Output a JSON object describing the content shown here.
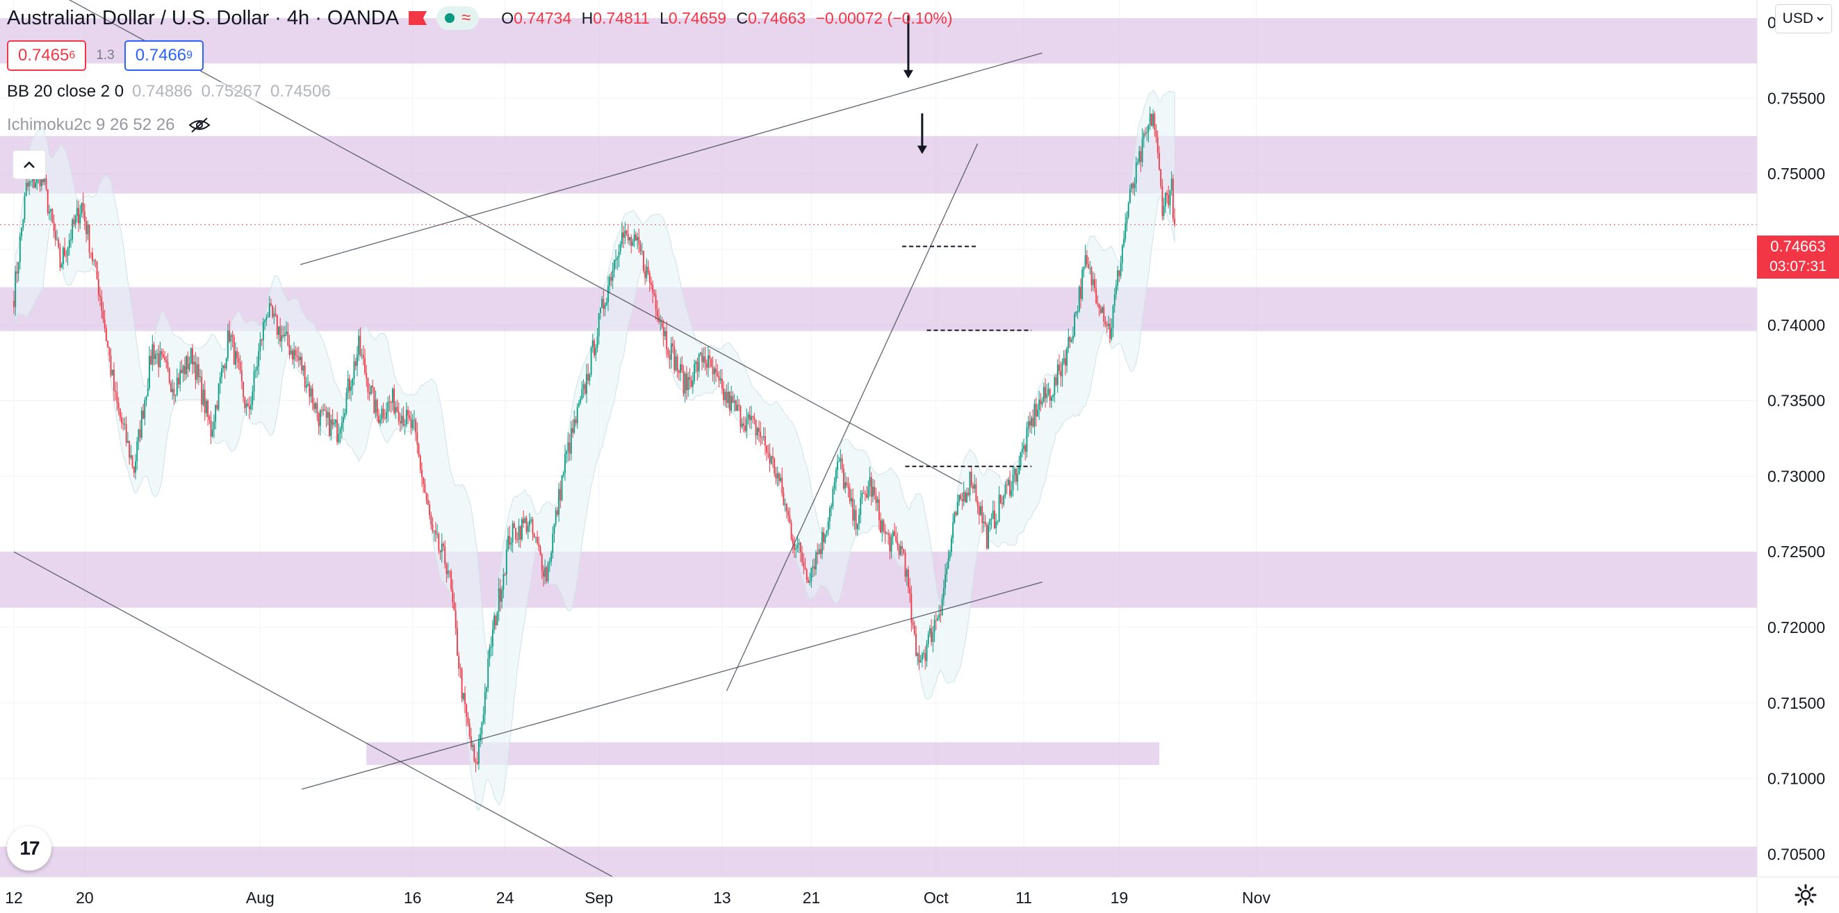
{
  "header": {
    "title": "Australian Dollar / U.S. Dollar · 4h · OANDA",
    "ohlc": {
      "o_label": "O",
      "o": "0.74734",
      "h_label": "H",
      "h": "0.74811",
      "l_label": "L",
      "l": "0.74659",
      "c_label": "C",
      "c": "0.74663",
      "change": "−0.00072 (−0.10%)"
    }
  },
  "trade": {
    "sell_main": "0.7465",
    "sell_frac": "6",
    "spread": "1.3",
    "buy_main": "0.7466",
    "buy_frac": "9"
  },
  "indicators": {
    "bb_label": "BB 20 close 2 0",
    "bb_values": "0.74886 0.75267 0.74506",
    "ichimoku_label": "Ichimoku2c 9 26 52 26"
  },
  "currency": "USD",
  "last_price": {
    "price": "0.74663",
    "countdown": "03:07:31"
  },
  "icons": [
    "flag-icon",
    "market-open-dot-icon",
    "wave-icon",
    "eye-hidden-icon",
    "collapse-chevron-icon",
    "chevron-down-icon",
    "tradingview-logo-icon",
    "gear-icon"
  ],
  "colors": {
    "up": "#089981",
    "down": "#f23645",
    "zone": "#d6b4e0",
    "price_label": "#f23645"
  },
  "chart_data": {
    "type": "candlestick",
    "symbol": "AUDUSD",
    "timeframe": "4h",
    "ylim": [
      0.7035,
      0.7615
    ],
    "y_ticks": [
      "0.76000",
      "0.75500",
      "0.75000",
      "0.74500",
      "0.74000",
      "0.73500",
      "0.73000",
      "0.72500",
      "0.72000",
      "0.71500",
      "0.71000",
      "0.70500"
    ],
    "x_ticks": [
      "12",
      "20",
      "Aug",
      "16",
      "24",
      "Sep",
      "13",
      "21",
      "Oct",
      "11",
      "19",
      "Nov"
    ],
    "x_tick_index": [
      0,
      46,
      160,
      259,
      319,
      380,
      460,
      518,
      599,
      656,
      718,
      807
    ],
    "last_index": 754,
    "anchors": [
      [
        0,
        0.742
      ],
      [
        8,
        0.749
      ],
      [
        18,
        0.75
      ],
      [
        30,
        0.744
      ],
      [
        44,
        0.748
      ],
      [
        56,
        0.742
      ],
      [
        66,
        0.735
      ],
      [
        78,
        0.7305
      ],
      [
        90,
        0.7385
      ],
      [
        104,
        0.736
      ],
      [
        116,
        0.738
      ],
      [
        128,
        0.733
      ],
      [
        140,
        0.7395
      ],
      [
        152,
        0.734
      ],
      [
        164,
        0.741
      ],
      [
        176,
        0.739
      ],
      [
        186,
        0.7375
      ],
      [
        198,
        0.734
      ],
      [
        210,
        0.733
      ],
      [
        224,
        0.7385
      ],
      [
        236,
        0.734
      ],
      [
        246,
        0.735
      ],
      [
        260,
        0.733
      ],
      [
        272,
        0.726
      ],
      [
        282,
        0.724
      ],
      [
        292,
        0.715
      ],
      [
        300,
        0.7105
      ],
      [
        310,
        0.719
      ],
      [
        322,
        0.726
      ],
      [
        334,
        0.727
      ],
      [
        346,
        0.7235
      ],
      [
        358,
        0.731
      ],
      [
        370,
        0.7355
      ],
      [
        382,
        0.741
      ],
      [
        394,
        0.746
      ],
      [
        406,
        0.745
      ],
      [
        416,
        0.742
      ],
      [
        424,
        0.739
      ],
      [
        436,
        0.736
      ],
      [
        448,
        0.738
      ],
      [
        460,
        0.7355
      ],
      [
        472,
        0.734
      ],
      [
        484,
        0.733
      ],
      [
        496,
        0.73
      ],
      [
        506,
        0.726
      ],
      [
        516,
        0.7235
      ],
      [
        526,
        0.726
      ],
      [
        536,
        0.731
      ],
      [
        546,
        0.727
      ],
      [
        556,
        0.7295
      ],
      [
        566,
        0.726
      ],
      [
        578,
        0.725
      ],
      [
        586,
        0.718
      ],
      [
        592,
        0.7185
      ],
      [
        602,
        0.7215
      ],
      [
        612,
        0.7275
      ],
      [
        622,
        0.73
      ],
      [
        632,
        0.726
      ],
      [
        642,
        0.7285
      ],
      [
        652,
        0.7305
      ],
      [
        664,
        0.7345
      ],
      [
        676,
        0.736
      ],
      [
        686,
        0.739
      ],
      [
        696,
        0.744
      ],
      [
        706,
        0.7415
      ],
      [
        712,
        0.7395
      ],
      [
        724,
        0.748
      ],
      [
        734,
        0.752
      ],
      [
        740,
        0.754
      ],
      [
        746,
        0.748
      ],
      [
        752,
        0.749
      ],
      [
        754,
        0.74663
      ]
    ],
    "support_resistance_zones": [
      {
        "from": 0.7573,
        "to": 0.7603
      },
      {
        "from": 0.7487,
        "to": 0.7525
      },
      {
        "from": 0.7396,
        "to": 0.7425
      },
      {
        "from": 0.7213,
        "to": 0.725
      },
      {
        "from": 0.7109,
        "to": 0.7124
      },
      {
        "from": 0.7035,
        "to": 0.7055
      }
    ],
    "dashed_levels": [
      0.7452,
      0.73965,
      0.73065
    ],
    "last_price_line": 0.74663
  }
}
